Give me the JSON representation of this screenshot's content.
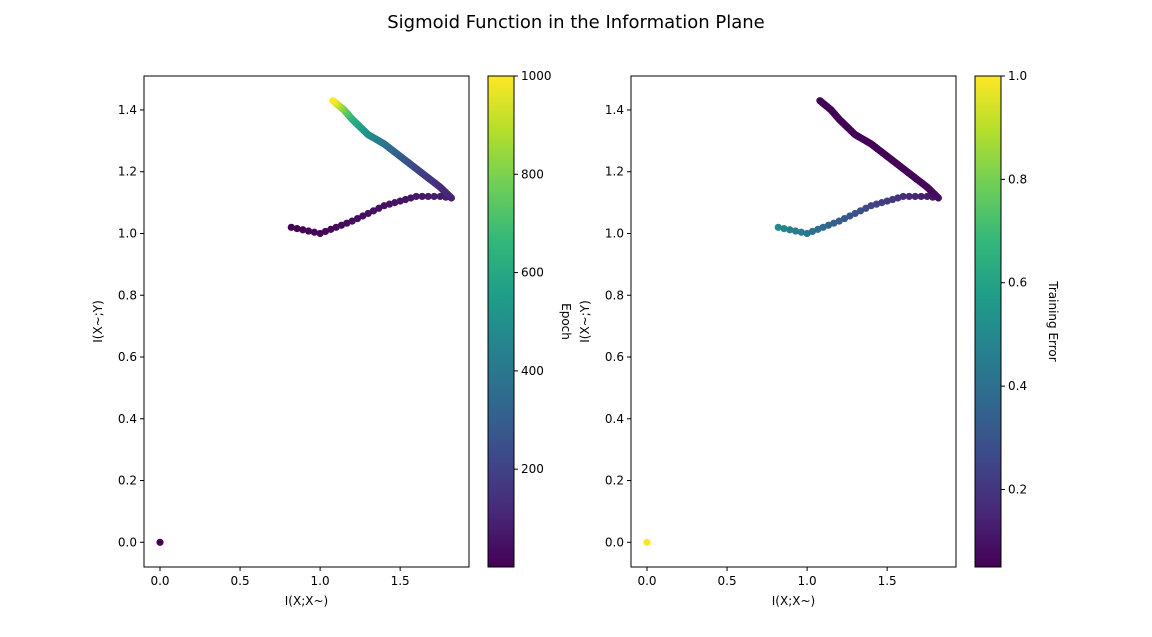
{
  "figure": {
    "title": "Sigmoid Function in the Information Plane"
  },
  "colormap": [
    "#440154",
    "#482878",
    "#3e4989",
    "#31688e",
    "#26828e",
    "#1f9e89",
    "#35b779",
    "#6ece58",
    "#b5de2b",
    "#fde725"
  ],
  "chart_data": [
    {
      "type": "scatter",
      "xlabel": "I(X;X~)",
      "ylabel": "I(X~;Y)",
      "xlim": [
        -0.1,
        1.93
      ],
      "ylim": [
        -0.08,
        1.51
      ],
      "xticks": [
        "0.0",
        "0.5",
        "1.0",
        "1.5"
      ],
      "yticks": [
        "0.0",
        "0.2",
        "0.4",
        "0.6",
        "0.8",
        "1.0",
        "1.2",
        "1.4"
      ],
      "colorbar": {
        "label": "Epoch",
        "range": [
          1,
          1000
        ],
        "ticks": [
          "200",
          "400",
          "600",
          "800",
          "1000"
        ]
      },
      "color_encoding": "epoch",
      "points": [
        {
          "x": 0.0,
          "y": 0.0,
          "c": 1
        },
        {
          "x": 0.82,
          "y": 1.02,
          "c": 5
        },
        {
          "x": 1.0,
          "y": 1.0,
          "c": 15
        },
        {
          "x": 1.2,
          "y": 1.04,
          "c": 30
        },
        {
          "x": 1.4,
          "y": 1.09,
          "c": 45
        },
        {
          "x": 1.6,
          "y": 1.12,
          "c": 60
        },
        {
          "x": 1.75,
          "y": 1.12,
          "c": 75
        },
        {
          "x": 1.82,
          "y": 1.115,
          "c": 90
        },
        {
          "x": 1.75,
          "y": 1.15,
          "c": 120
        },
        {
          "x": 1.6,
          "y": 1.21,
          "c": 200
        },
        {
          "x": 1.5,
          "y": 1.25,
          "c": 280
        },
        {
          "x": 1.4,
          "y": 1.29,
          "c": 380
        },
        {
          "x": 1.3,
          "y": 1.32,
          "c": 480
        },
        {
          "x": 1.2,
          "y": 1.37,
          "c": 620
        },
        {
          "x": 1.15,
          "y": 1.4,
          "c": 760
        },
        {
          "x": 1.08,
          "y": 1.43,
          "c": 1000
        }
      ]
    },
    {
      "type": "scatter",
      "xlabel": "I(X;X~)",
      "ylabel": "I(X~;Y)",
      "xlim": [
        -0.1,
        1.93
      ],
      "ylim": [
        -0.08,
        1.51
      ],
      "xticks": [
        "0.0",
        "0.5",
        "1.0",
        "1.5"
      ],
      "yticks": [
        "0.0",
        "0.2",
        "0.4",
        "0.6",
        "0.8",
        "1.0",
        "1.2",
        "1.4"
      ],
      "colorbar": {
        "label": "Training Error",
        "range": [
          0.05,
          1.0
        ],
        "ticks": [
          "0.2",
          "0.4",
          "0.6",
          "0.8",
          "1.0"
        ]
      },
      "color_encoding": "training error",
      "points": [
        {
          "x": 0.0,
          "y": 0.0,
          "c": 1.0
        },
        {
          "x": 0.82,
          "y": 1.02,
          "c": 0.5
        },
        {
          "x": 1.0,
          "y": 1.0,
          "c": 0.42
        },
        {
          "x": 1.2,
          "y": 1.04,
          "c": 0.33
        },
        {
          "x": 1.4,
          "y": 1.09,
          "c": 0.25
        },
        {
          "x": 1.6,
          "y": 1.12,
          "c": 0.18
        },
        {
          "x": 1.75,
          "y": 1.12,
          "c": 0.12
        },
        {
          "x": 1.82,
          "y": 1.115,
          "c": 0.09
        },
        {
          "x": 1.75,
          "y": 1.15,
          "c": 0.07
        },
        {
          "x": 1.6,
          "y": 1.21,
          "c": 0.06
        },
        {
          "x": 1.5,
          "y": 1.25,
          "c": 0.06
        },
        {
          "x": 1.4,
          "y": 1.29,
          "c": 0.055
        },
        {
          "x": 1.3,
          "y": 1.32,
          "c": 0.055
        },
        {
          "x": 1.2,
          "y": 1.37,
          "c": 0.05
        },
        {
          "x": 1.15,
          "y": 1.4,
          "c": 0.05
        },
        {
          "x": 1.08,
          "y": 1.43,
          "c": 0.05
        }
      ]
    }
  ]
}
